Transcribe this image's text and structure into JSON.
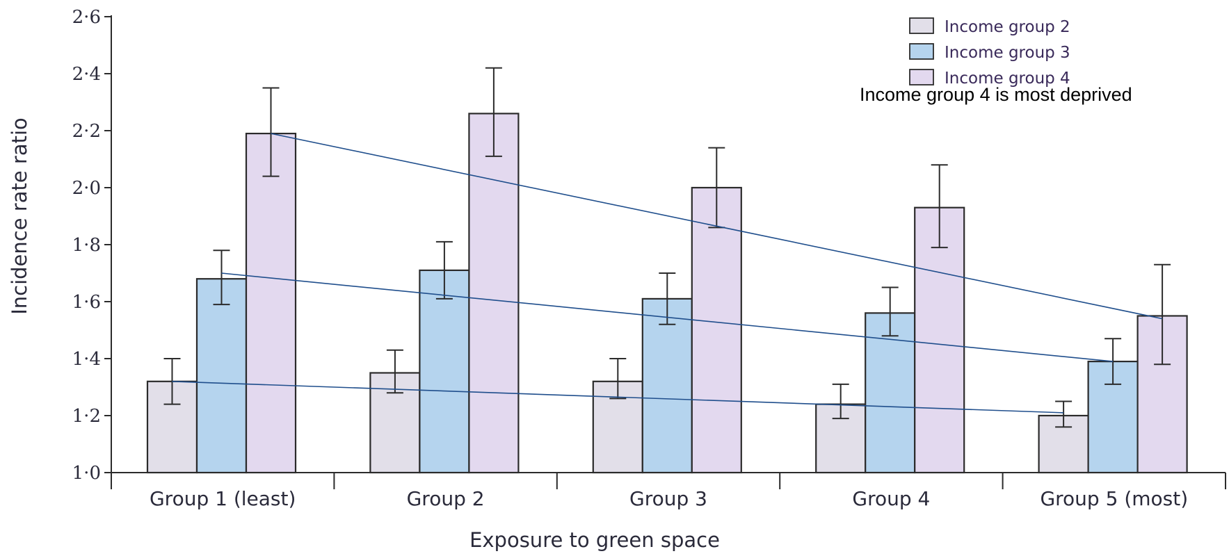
{
  "chart_data": {
    "type": "bar",
    "xlabel": "Exposure to green space",
    "ylabel": "Incidence rate ratio",
    "ylim": [
      1.0,
      2.6
    ],
    "yticks": [
      "1·0",
      "1·2",
      "1·4",
      "1·6",
      "1·8",
      "2·0",
      "2·2",
      "2·4",
      "2·6"
    ],
    "ytick_values": [
      1.0,
      1.2,
      1.4,
      1.6,
      1.8,
      2.0,
      2.2,
      2.4,
      2.6
    ],
    "categories": [
      "Group 1 (least)",
      "Group 2",
      "Group 3",
      "Group 4",
      "Group 5 (most)"
    ],
    "series": [
      {
        "name": "Income group 2",
        "color": "#e2dfe9",
        "values": [
          1.32,
          1.35,
          1.32,
          1.24,
          1.2
        ],
        "error_low": [
          1.24,
          1.28,
          1.26,
          1.19,
          1.16
        ],
        "error_high": [
          1.4,
          1.43,
          1.4,
          1.31,
          1.25
        ]
      },
      {
        "name": "Income group 3",
        "color": "#b5d4ee",
        "values": [
          1.68,
          1.71,
          1.61,
          1.56,
          1.39
        ],
        "error_low": [
          1.59,
          1.61,
          1.52,
          1.48,
          1.31
        ],
        "error_high": [
          1.78,
          1.81,
          1.7,
          1.65,
          1.47
        ]
      },
      {
        "name": "Income group 4",
        "color": "#e3d9ef",
        "values": [
          2.19,
          2.26,
          2.0,
          1.93,
          1.55
        ],
        "error_low": [
          2.04,
          2.11,
          1.86,
          1.79,
          1.38
        ],
        "error_high": [
          2.35,
          2.42,
          2.14,
          2.08,
          1.73
        ]
      }
    ],
    "trend_lines": [
      {
        "series": "Income group 2",
        "from": [
          1,
          1.32
        ],
        "to": [
          5,
          1.21
        ]
      },
      {
        "series": "Income group 3",
        "from": [
          1,
          1.7
        ],
        "to": [
          5,
          1.39
        ]
      },
      {
        "series": "Income group 4",
        "from": [
          1,
          2.19
        ],
        "to": [
          5,
          1.54
        ]
      }
    ],
    "trend_line_color": "#1f4e8c",
    "legend_position": "top-right",
    "annotation": "Income group 4 is most deprived",
    "grid": false
  }
}
